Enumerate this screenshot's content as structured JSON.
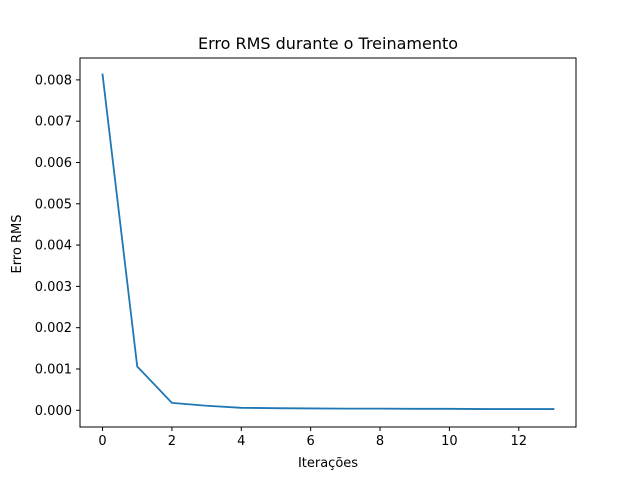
{
  "chart_data": {
    "type": "line",
    "title": "Erro RMS durante o Treinamento",
    "xlabel": "Iterações",
    "ylabel": "Erro RMS",
    "xlim": [
      -0.65,
      13.65
    ],
    "ylim": [
      -0.000405,
      0.00853
    ],
    "xticks": [
      0,
      2,
      4,
      6,
      8,
      10,
      12
    ],
    "xtick_labels": [
      "0",
      "2",
      "4",
      "6",
      "8",
      "10",
      "12"
    ],
    "yticks": [
      0,
      0.001,
      0.002,
      0.003,
      0.004,
      0.005,
      0.006,
      0.007,
      0.008
    ],
    "ytick_labels": [
      "0.000",
      "0.001",
      "0.002",
      "0.003",
      "0.004",
      "0.005",
      "0.006",
      "0.007",
      "0.008"
    ],
    "grid": false,
    "line_color": "#1f77b4",
    "series": [
      {
        "x": [
          0,
          1,
          2,
          3,
          4,
          5,
          6,
          7,
          8,
          9,
          10,
          11,
          12,
          13
        ],
        "values": [
          0.00813,
          0.00106,
          0.00018,
          0.00011,
          6e-05,
          5e-05,
          4.5e-05,
          4e-05,
          4e-05,
          3.5e-05,
          3.5e-05,
          3e-05,
          3e-05,
          3e-05
        ]
      }
    ]
  }
}
